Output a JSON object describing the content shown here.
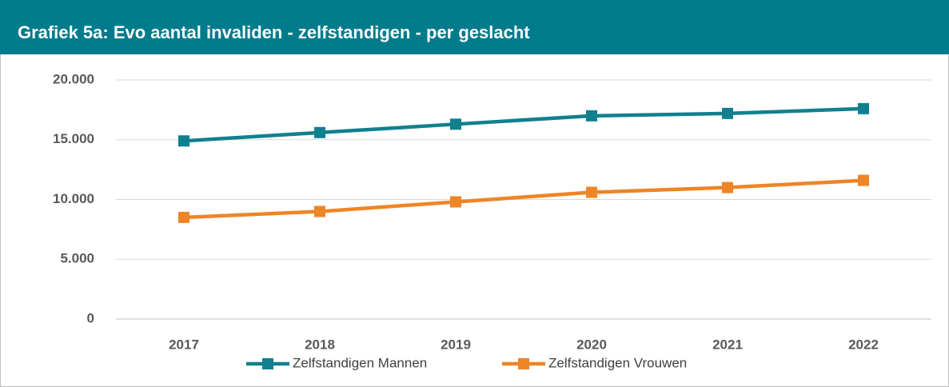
{
  "chart_data": {
    "type": "line",
    "title": "Grafiek 5a: Evo aantal invaliden - zelfstandigen - per geslacht",
    "categories": [
      "2017",
      "2018",
      "2019",
      "2020",
      "2021",
      "2022"
    ],
    "series": [
      {
        "name": "Zelfstandigen Mannen",
        "color": "#10808f",
        "values": [
          14900,
          15600,
          16300,
          17000,
          17200,
          17600
        ]
      },
      {
        "name": "Zelfstandigen Vrouwen",
        "color": "#ee8526",
        "values": [
          8500,
          9000,
          9800,
          10600,
          11000,
          11600
        ]
      }
    ],
    "ylim": [
      0,
      20000
    ],
    "yticks": [
      0,
      {
        "value": 5000,
        "label": "5.000"
      },
      {
        "value": 10000,
        "label": "10.000"
      },
      {
        "value": 15000,
        "label": "15.000"
      },
      {
        "value": 20000,
        "label": "20.000"
      }
    ],
    "grid": true,
    "legend": "bottom"
  }
}
